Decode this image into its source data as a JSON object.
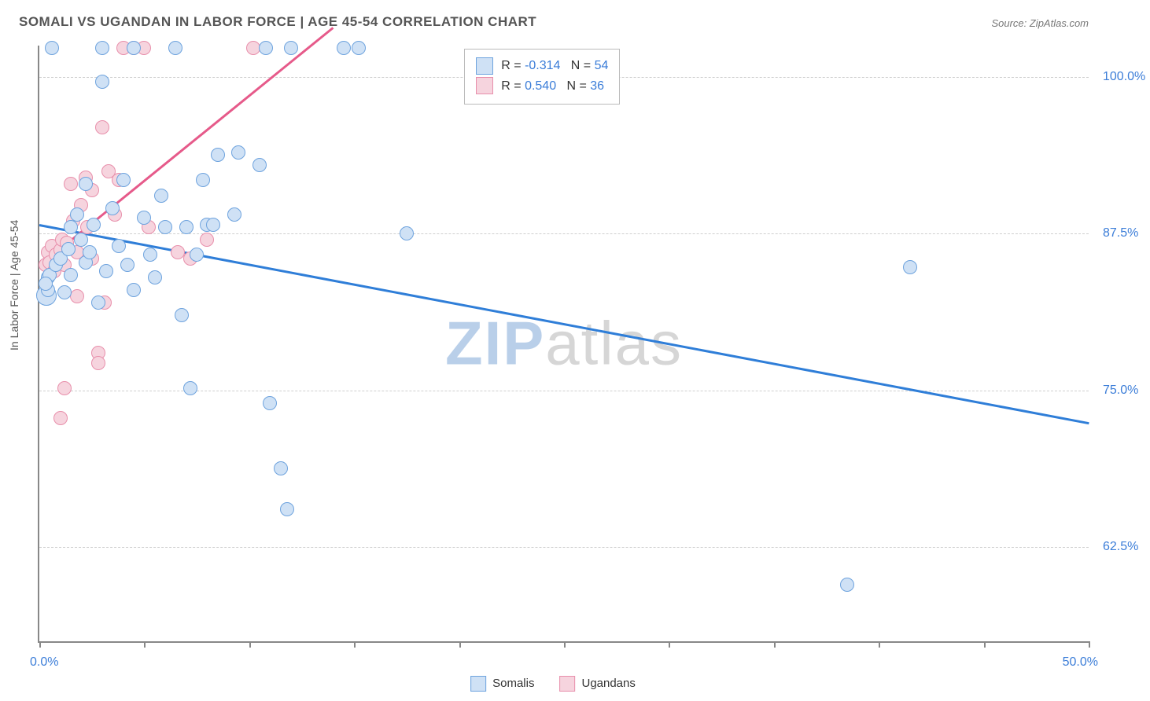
{
  "title": "SOMALI VS UGANDAN IN LABOR FORCE | AGE 45-54 CORRELATION CHART",
  "source": "Source: ZipAtlas.com",
  "watermark": {
    "part1": "ZIP",
    "part2": "atlas"
  },
  "chart": {
    "type": "scatter",
    "background_color": "#ffffff",
    "grid_color": "#cfcfcf",
    "axis_color": "#888888",
    "tick_label_color": "#3b7dd8",
    "axis_title_color": "#555555",
    "xlim": [
      0,
      50
    ],
    "ylim": [
      55,
      102.5
    ],
    "xticks": [
      0,
      5,
      10,
      15,
      20,
      25,
      30,
      35,
      40,
      45,
      50
    ],
    "xlabel_min": "0.0%",
    "xlabel_max": "50.0%",
    "ygrid": [
      {
        "y": 100.0,
        "label": "100.0%"
      },
      {
        "y": 87.5,
        "label": "87.5%"
      },
      {
        "y": 75.0,
        "label": "75.0%"
      },
      {
        "y": 62.5,
        "label": "62.5%"
      }
    ],
    "yaxis_title": "In Labor Force | Age 45-54",
    "marker_radius": 9,
    "marker_border_width": 1.5,
    "series": [
      {
        "name": "Somalis",
        "fill": "#cfe1f5",
        "stroke": "#6ea3de",
        "trend_color": "#2f7ed8",
        "trend_width": 3,
        "R": "-0.314",
        "N": "54",
        "trend": {
          "x1": 0,
          "y1": 88.3,
          "x2": 50,
          "y2": 72.5
        },
        "points": [
          [
            0.4,
            83.0
          ],
          [
            0.4,
            84.0
          ],
          [
            0.5,
            84.2
          ],
          [
            0.6,
            102.3
          ],
          [
            0.8,
            85.0
          ],
          [
            1.0,
            85.5
          ],
          [
            1.2,
            82.8
          ],
          [
            1.4,
            86.3
          ],
          [
            1.5,
            88.0
          ],
          [
            1.5,
            84.2
          ],
          [
            1.8,
            89.0
          ],
          [
            2.0,
            87.0
          ],
          [
            2.2,
            91.5
          ],
          [
            2.2,
            85.2
          ],
          [
            2.4,
            86.0
          ],
          [
            2.6,
            88.2
          ],
          [
            2.8,
            82.0
          ],
          [
            3.0,
            102.3
          ],
          [
            3.0,
            99.6
          ],
          [
            3.2,
            84.5
          ],
          [
            3.5,
            89.5
          ],
          [
            3.8,
            86.5
          ],
          [
            4.0,
            91.8
          ],
          [
            4.2,
            85.0
          ],
          [
            4.5,
            102.3
          ],
          [
            4.5,
            83.0
          ],
          [
            5.0,
            88.8
          ],
          [
            5.3,
            85.8
          ],
          [
            5.5,
            84.0
          ],
          [
            5.8,
            90.5
          ],
          [
            6.0,
            88.0
          ],
          [
            6.5,
            102.3
          ],
          [
            6.8,
            81.0
          ],
          [
            7.0,
            88.0
          ],
          [
            7.2,
            75.2
          ],
          [
            7.5,
            85.8
          ],
          [
            7.8,
            91.8
          ],
          [
            8.0,
            88.2
          ],
          [
            8.3,
            88.2
          ],
          [
            8.5,
            93.8
          ],
          [
            9.3,
            89.0
          ],
          [
            9.5,
            94.0
          ],
          [
            10.5,
            93.0
          ],
          [
            10.8,
            102.3
          ],
          [
            11.0,
            74.0
          ],
          [
            11.5,
            68.8
          ],
          [
            11.8,
            65.5
          ],
          [
            12.0,
            102.3
          ],
          [
            14.5,
            102.3
          ],
          [
            15.2,
            102.3
          ],
          [
            17.5,
            87.5
          ],
          [
            38.5,
            59.5
          ],
          [
            41.5,
            84.8
          ],
          [
            0.3,
            83.5
          ]
        ],
        "big_points": [
          [
            0.35,
            82.6
          ]
        ]
      },
      {
        "name": "Ugandans",
        "fill": "#f6d4de",
        "stroke": "#e88fab",
        "trend_color": "#e65a8a",
        "trend_width": 3,
        "R": "0.540",
        "N": "36",
        "trend": {
          "x1": 0,
          "y1": 85.0,
          "x2": 14.0,
          "y2": 104.0
        },
        "points": [
          [
            0.3,
            85.0
          ],
          [
            0.4,
            86.0
          ],
          [
            0.5,
            85.2
          ],
          [
            0.6,
            86.5
          ],
          [
            0.7,
            84.5
          ],
          [
            0.8,
            85.8
          ],
          [
            1.0,
            86.2
          ],
          [
            1.1,
            87.0
          ],
          [
            1.2,
            85.0
          ],
          [
            1.3,
            86.8
          ],
          [
            1.5,
            91.5
          ],
          [
            1.6,
            88.5
          ],
          [
            1.8,
            86.0
          ],
          [
            1.8,
            82.5
          ],
          [
            2.0,
            89.8
          ],
          [
            2.2,
            92.0
          ],
          [
            2.3,
            88.0
          ],
          [
            2.5,
            85.5
          ],
          [
            2.5,
            91.0
          ],
          [
            2.8,
            78.0
          ],
          [
            2.8,
            77.2
          ],
          [
            3.0,
            96.0
          ],
          [
            3.1,
            82.0
          ],
          [
            3.3,
            92.5
          ],
          [
            3.6,
            89.0
          ],
          [
            3.8,
            91.8
          ],
          [
            4.0,
            102.3
          ],
          [
            4.5,
            102.3
          ],
          [
            5.0,
            102.3
          ],
          [
            5.2,
            88.0
          ],
          [
            6.6,
            86.0
          ],
          [
            7.2,
            85.5
          ],
          [
            8.0,
            87.0
          ],
          [
            10.2,
            102.3
          ],
          [
            1.0,
            72.8
          ],
          [
            1.2,
            75.2
          ]
        ]
      }
    ],
    "stats_box": {
      "left_pct": 40.5,
      "top_pct": 0
    },
    "bottom_legend": [
      {
        "label": "Somalis",
        "fill": "#cfe1f5",
        "stroke": "#6ea3de"
      },
      {
        "label": "Ugandans",
        "fill": "#f6d4de",
        "stroke": "#e88fab"
      }
    ]
  }
}
